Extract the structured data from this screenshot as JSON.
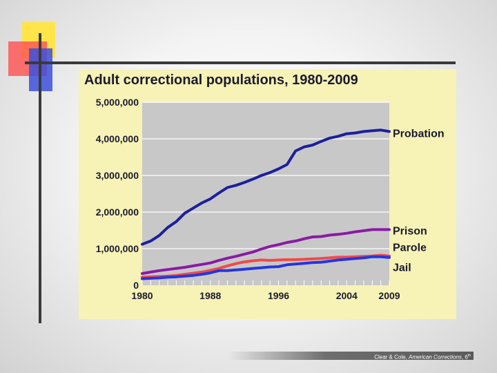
{
  "footer": {
    "authors": "Clear & Cole,",
    "book": "American Corrections",
    "edition_prefix": ", 6",
    "edition_suffix": "th"
  },
  "colors": {
    "probation": "#1c1f9c",
    "prison": "#8a1aa4",
    "parole": "#f04a4a",
    "jail": "#2336e2",
    "plot_bg": "#c8c8c8",
    "panel_bg": "#f7f2b6"
  },
  "chart_data": {
    "type": "line",
    "title": "Adult correctional populations, 1980-2009",
    "xlabel": "",
    "ylabel": "",
    "xlim": [
      1980,
      2009
    ],
    "ylim": [
      0,
      5000000
    ],
    "x_ticks": [
      1980,
      1988,
      1996,
      2004,
      2009
    ],
    "y_ticks": [
      0,
      1000000,
      2000000,
      3000000,
      4000000,
      5000000
    ],
    "y_tick_labels": [
      "0",
      "1,000,000",
      "2,000,000",
      "3,000,000",
      "4,000,000",
      "5,000,000"
    ],
    "grid": "horizontal",
    "legend": "right, labels at line ends",
    "x": [
      1980,
      1981,
      1982,
      1983,
      1984,
      1985,
      1986,
      1987,
      1988,
      1989,
      1990,
      1991,
      1992,
      1993,
      1994,
      1995,
      1996,
      1997,
      1998,
      1999,
      2000,
      2001,
      2002,
      2003,
      2004,
      2005,
      2006,
      2007,
      2008,
      2009
    ],
    "series": [
      {
        "name": "Probation",
        "values": [
          1120000,
          1210000,
          1360000,
          1580000,
          1740000,
          1970000,
          2110000,
          2250000,
          2360000,
          2520000,
          2670000,
          2730000,
          2810000,
          2900000,
          3000000,
          3080000,
          3180000,
          3300000,
          3670000,
          3780000,
          3830000,
          3930000,
          4020000,
          4070000,
          4140000,
          4160000,
          4200000,
          4220000,
          4240000,
          4200000
        ]
      },
      {
        "name": "Prison",
        "values": [
          320000,
          360000,
          400000,
          430000,
          460000,
          490000,
          530000,
          570000,
          610000,
          680000,
          740000,
          790000,
          850000,
          910000,
          990000,
          1060000,
          1110000,
          1170000,
          1210000,
          1270000,
          1320000,
          1330000,
          1370000,
          1390000,
          1420000,
          1460000,
          1490000,
          1520000,
          1520000,
          1520000
        ]
      },
      {
        "name": "Parole",
        "values": [
          220000,
          230000,
          240000,
          250000,
          270000,
          300000,
          330000,
          360000,
          410000,
          460000,
          530000,
          590000,
          640000,
          670000,
          690000,
          680000,
          690000,
          700000,
          700000,
          710000,
          720000,
          730000,
          750000,
          770000,
          770000,
          780000,
          790000,
          800000,
          820000,
          800000
        ]
      },
      {
        "name": "Jail",
        "values": [
          180000,
          190000,
          200000,
          220000,
          230000,
          250000,
          270000,
          300000,
          340000,
          400000,
          400000,
          420000,
          440000,
          460000,
          480000,
          500000,
          510000,
          560000,
          580000,
          600000,
          620000,
          630000,
          660000,
          690000,
          710000,
          730000,
          750000,
          780000,
          780000,
          760000
        ]
      }
    ]
  }
}
